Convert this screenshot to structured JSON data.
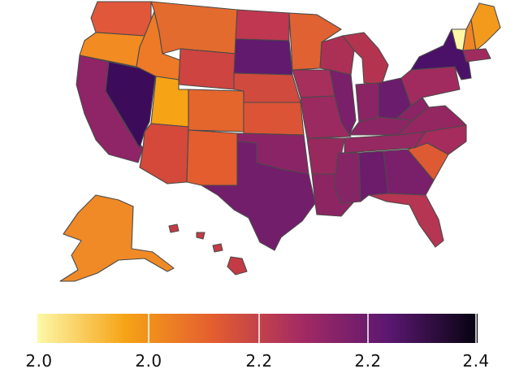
{
  "map": {
    "colorscale": {
      "stops": [
        "#fcf8a8",
        "#f6a316",
        "#e35d2f",
        "#a42a63",
        "#5a1770",
        "#05030f"
      ],
      "tick_labels": [
        "2.0",
        "2.0",
        "2.2",
        "2.2",
        "2.4"
      ]
    },
    "states": [
      {
        "id": "WA",
        "name": "Washington",
        "color": "#e0573a"
      },
      {
        "id": "OR",
        "name": "Oregon",
        "color": "#f28b21"
      },
      {
        "id": "CA",
        "name": "California",
        "color": "#8f2467"
      },
      {
        "id": "NV",
        "name": "Nevada",
        "color": "#3c0c5a"
      },
      {
        "id": "ID",
        "name": "Idaho",
        "color": "#ee7a27"
      },
      {
        "id": "MT",
        "name": "Montana",
        "color": "#e46b2e"
      },
      {
        "id": "WY",
        "name": "Wyoming",
        "color": "#cd4440"
      },
      {
        "id": "UT",
        "name": "Utah",
        "color": "#f6a316"
      },
      {
        "id": "CO",
        "name": "Colorado",
        "color": "#e4662d"
      },
      {
        "id": "AZ",
        "name": "Arizona",
        "color": "#d4493a"
      },
      {
        "id": "NM",
        "name": "New Mexico",
        "color": "#e35d2f"
      },
      {
        "id": "ND",
        "name": "North Dakota",
        "color": "#bf3750"
      },
      {
        "id": "SD",
        "name": "South Dakota",
        "color": "#611a6e"
      },
      {
        "id": "NE",
        "name": "Nebraska",
        "color": "#d04a3d"
      },
      {
        "id": "KS",
        "name": "Kansas",
        "color": "#dc5436"
      },
      {
        "id": "OK",
        "name": "Oklahoma",
        "color": "#8b2466"
      },
      {
        "id": "TX",
        "name": "Texas",
        "color": "#731e6b"
      },
      {
        "id": "MN",
        "name": "Minnesota",
        "color": "#e06131"
      },
      {
        "id": "IA",
        "name": "Iowa",
        "color": "#a72f5b"
      },
      {
        "id": "MO",
        "name": "Missouri",
        "color": "#9b2a60"
      },
      {
        "id": "AR",
        "name": "Arkansas",
        "color": "#98295f"
      },
      {
        "id": "LA",
        "name": "Louisiana",
        "color": "#8d2563"
      },
      {
        "id": "WI",
        "name": "Wisconsin",
        "color": "#ac2f56"
      },
      {
        "id": "IL",
        "name": "Illinois",
        "color": "#7a1f6a"
      },
      {
        "id": "MI",
        "name": "Michigan",
        "color": "#b4344f"
      },
      {
        "id": "IN",
        "name": "Indiana",
        "color": "#8a2465"
      },
      {
        "id": "OH",
        "name": "Ohio",
        "color": "#6c1c6c"
      },
      {
        "id": "KY",
        "name": "Kentucky",
        "color": "#8c2564"
      },
      {
        "id": "TN",
        "name": "Tennessee",
        "color": "#962961"
      },
      {
        "id": "MS",
        "name": "Mississippi",
        "color": "#862566"
      },
      {
        "id": "AL",
        "name": "Alabama",
        "color": "#6d1c6c"
      },
      {
        "id": "GA",
        "name": "Georgia",
        "color": "#7a1f6a"
      },
      {
        "id": "FL",
        "name": "Florida",
        "color": "#b53552"
      },
      {
        "id": "SC",
        "name": "South Carolina",
        "color": "#dd5a33"
      },
      {
        "id": "NC",
        "name": "North Carolina",
        "color": "#a52c5c"
      },
      {
        "id": "VA",
        "name": "Virginia",
        "color": "#942761"
      },
      {
        "id": "WV",
        "name": "West Virginia",
        "color": "#8a2464"
      },
      {
        "id": "PA",
        "name": "Pennsylvania",
        "color": "#a12b5e"
      },
      {
        "id": "NY",
        "name": "New York",
        "color": "#4b1168"
      },
      {
        "id": "ME",
        "name": "Maine",
        "color": "#f39a1c"
      },
      {
        "id": "VT",
        "name": "Vermont",
        "color": "#fcf8a8"
      },
      {
        "id": "NH",
        "name": "New Hampshire",
        "color": "#ef8426"
      },
      {
        "id": "MA",
        "name": "Massachusetts",
        "color": "#a02b5f"
      },
      {
        "id": "AK",
        "name": "Alaska",
        "color": "#f08a26"
      },
      {
        "id": "HI",
        "name": "Hawaii",
        "color": "#c43b45"
      }
    ]
  }
}
